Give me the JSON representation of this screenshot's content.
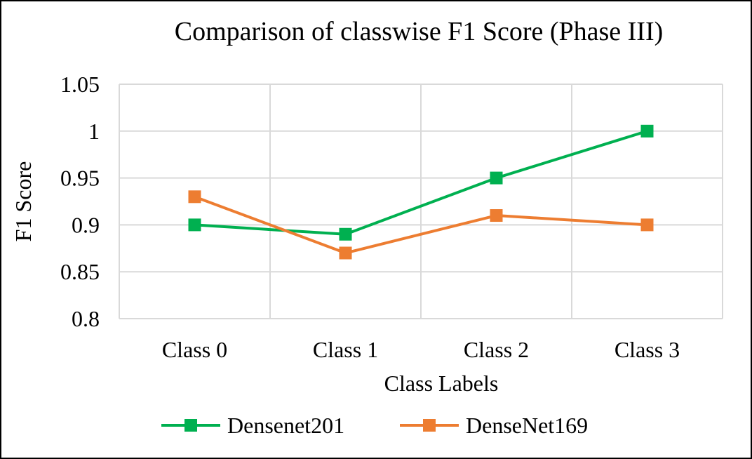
{
  "chart_data": {
    "type": "line",
    "title": "Comparison of classwise F1 Score (Phase III)",
    "xlabel": "Class Labels",
    "ylabel": "F1 Score",
    "categories": [
      "Class 0",
      "Class 1",
      "Class 2",
      "Class 3"
    ],
    "ylim": [
      0.8,
      1.05
    ],
    "yticks": [
      "0.8",
      "0.85",
      "0.9",
      "0.95",
      "1",
      "1.05"
    ],
    "grid": true,
    "legend_position": "bottom",
    "series": [
      {
        "name": "Densenet201",
        "color": "#00b050",
        "marker": "square",
        "values": [
          0.9,
          0.89,
          0.95,
          1.0
        ]
      },
      {
        "name": "DenseNet169",
        "color": "#ed7d31",
        "marker": "square",
        "values": [
          0.93,
          0.87,
          0.91,
          0.9
        ]
      }
    ]
  }
}
